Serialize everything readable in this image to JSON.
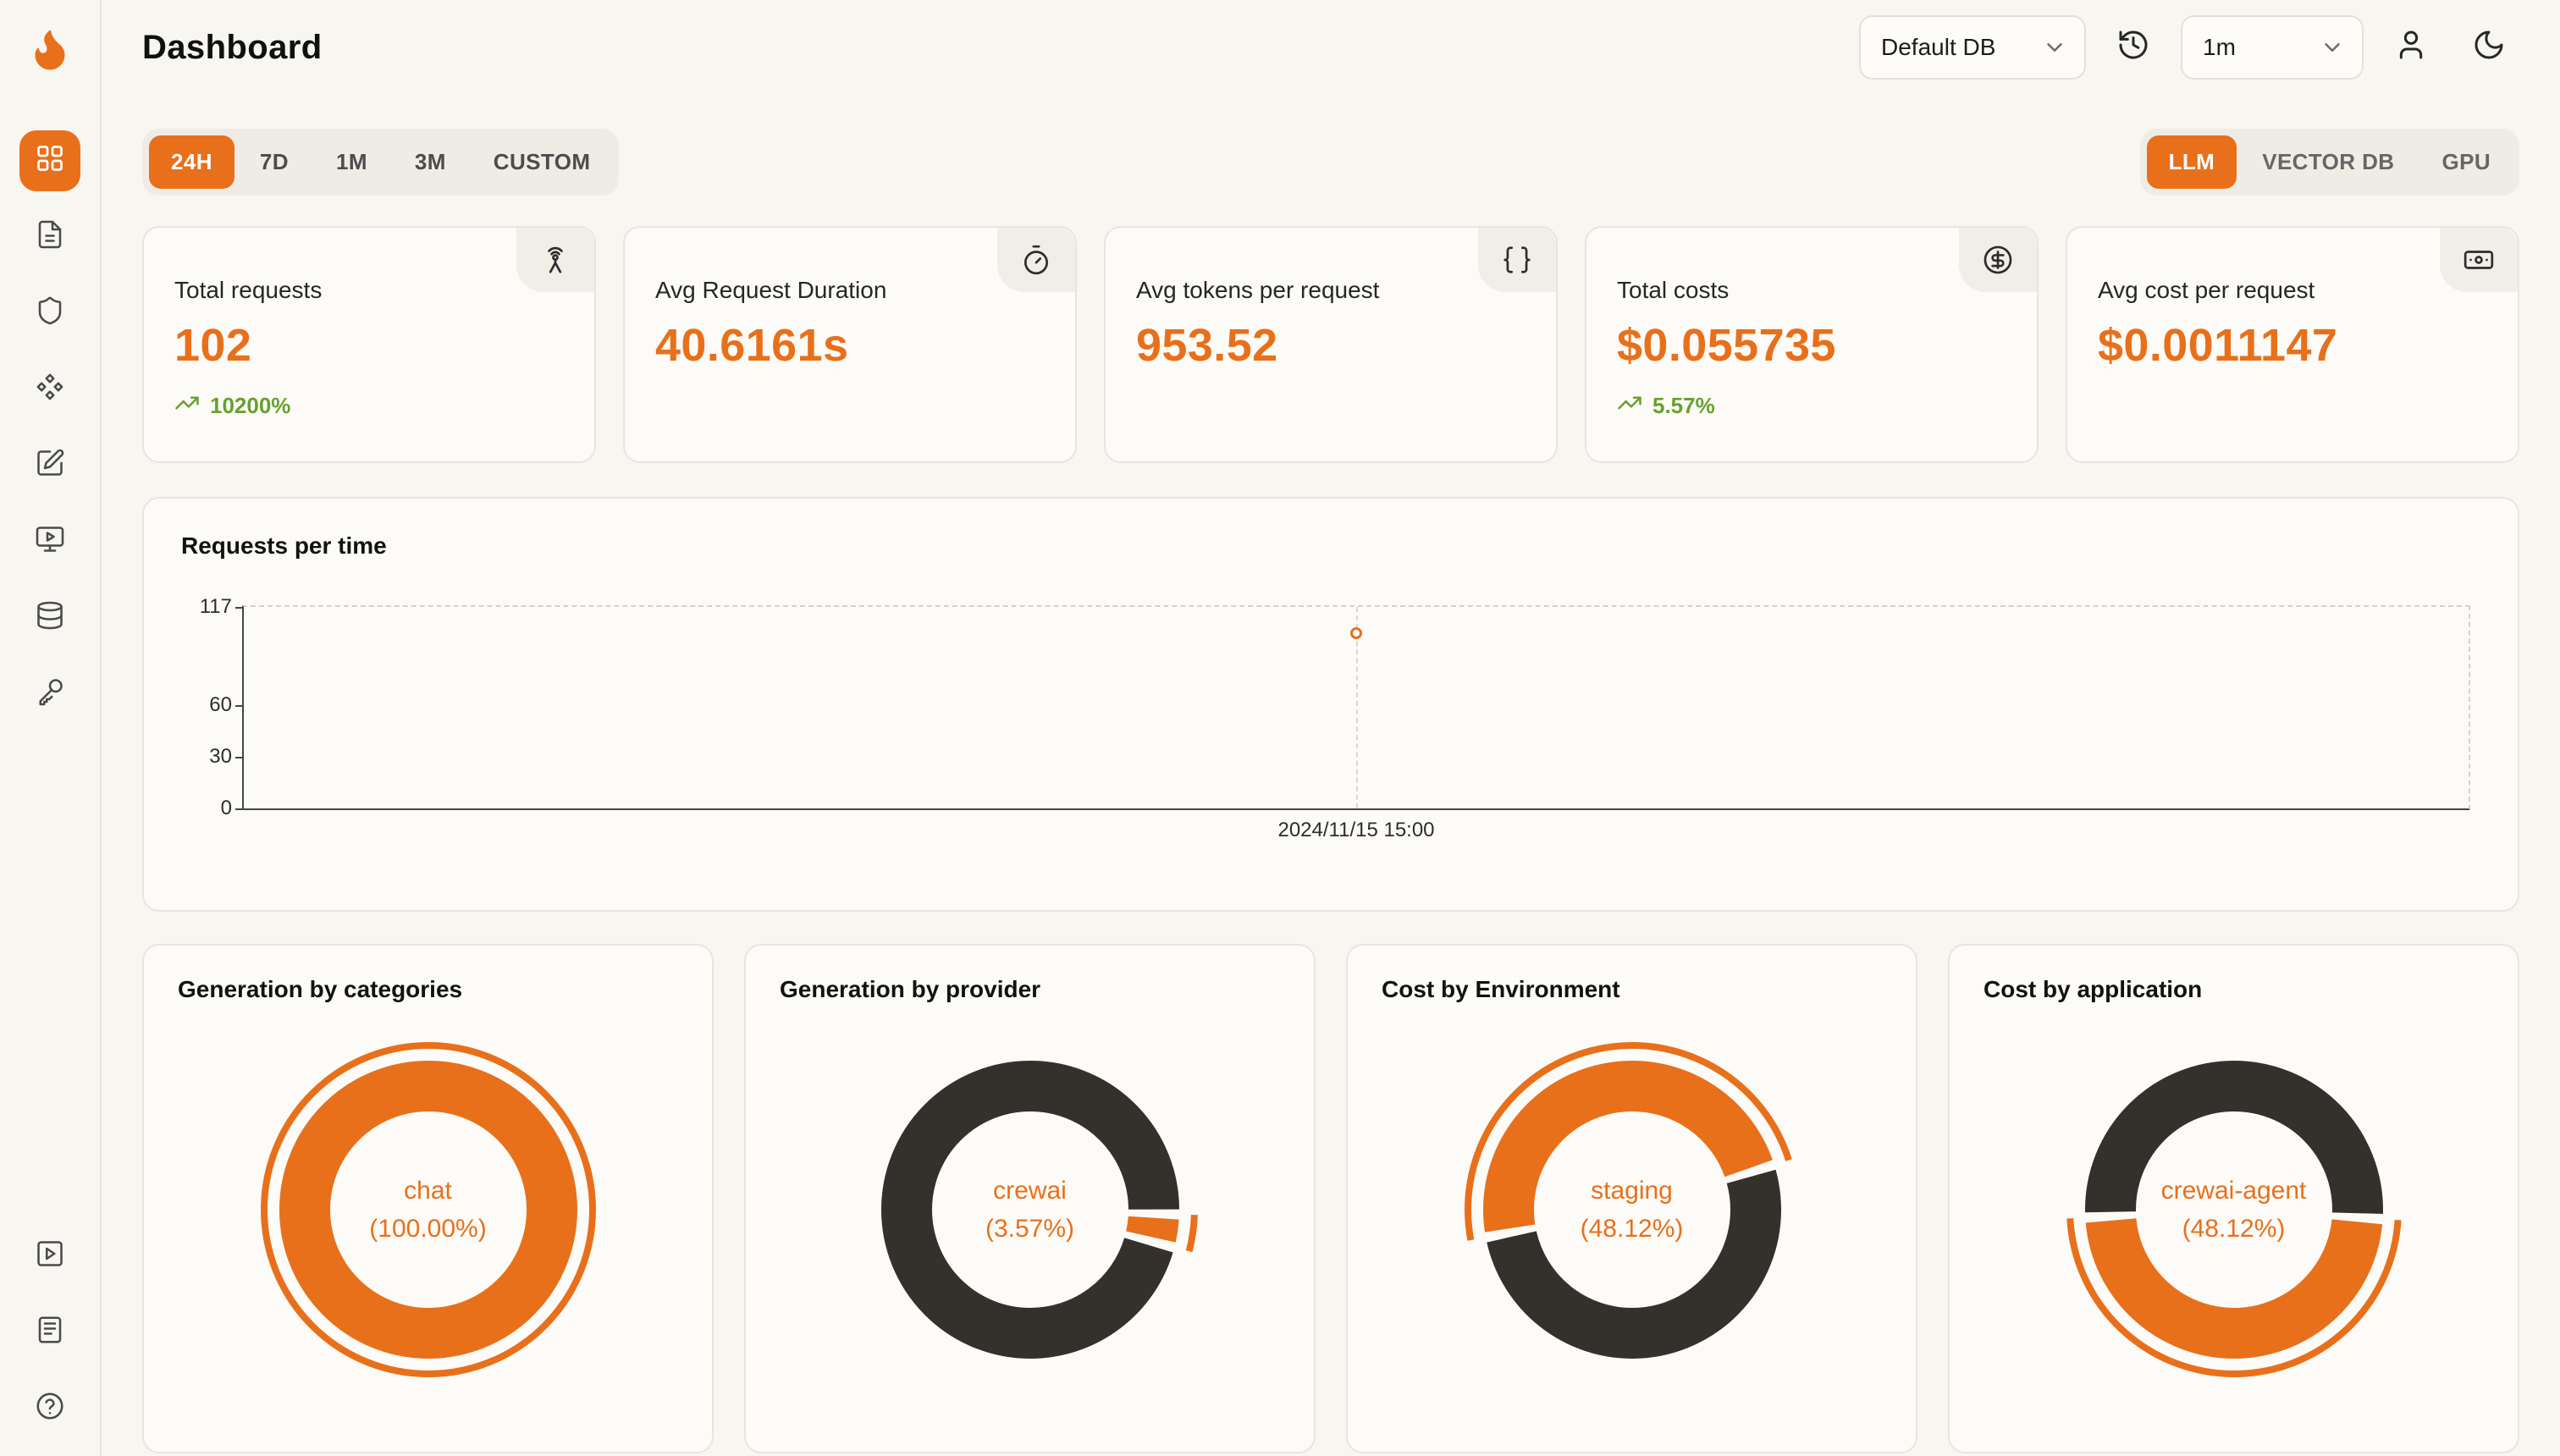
{
  "app": {
    "title": "Dashboard"
  },
  "header": {
    "db_select": {
      "value": "Default DB",
      "icon": "chevron-down-icon"
    },
    "refresh": {
      "icon": "history-icon"
    },
    "interval_select": {
      "value": "1m",
      "icon": "chevron-down-icon"
    },
    "profile": {
      "icon": "user-icon"
    },
    "theme": {
      "icon": "moon-icon"
    }
  },
  "sidebar": {
    "items": [
      {
        "icon": "dashboard-grid-icon",
        "active": true
      },
      {
        "icon": "requests-file-icon"
      },
      {
        "icon": "exceptions-shield-icon"
      },
      {
        "icon": "vector-diamonds-icon"
      },
      {
        "icon": "prompt-edit-icon"
      },
      {
        "icon": "playground-monitor-icon"
      },
      {
        "icon": "database-icon"
      },
      {
        "icon": "api-key-icon"
      }
    ],
    "footer_items": [
      {
        "icon": "video-play-icon"
      },
      {
        "icon": "docs-icon"
      },
      {
        "icon": "help-icon"
      }
    ]
  },
  "time_tabs": {
    "items": [
      "24H",
      "7D",
      "1M",
      "3M",
      "CUSTOM"
    ],
    "active": "24H"
  },
  "source_tabs": {
    "items": [
      "LLM",
      "VECTOR DB",
      "GPU"
    ],
    "active": "LLM"
  },
  "stats": [
    {
      "label": "Total requests",
      "value": "102",
      "delta": "10200%",
      "icon": "radio-tower-icon"
    },
    {
      "label": "Avg Request Duration",
      "value": "40.6161s",
      "delta": "",
      "icon": "timer-icon"
    },
    {
      "label": "Avg tokens per request",
      "value": "953.52",
      "delta": "",
      "icon": "braces-icon"
    },
    {
      "label": "Total costs",
      "value": "$0.055735",
      "delta": "5.57%",
      "icon": "circle-dollar-icon"
    },
    {
      "label": "Avg cost per request",
      "value": "$0.0011147",
      "delta": "",
      "icon": "banknote-icon"
    }
  ],
  "colors": {
    "accent": "#E8701B",
    "dark": "#34302B",
    "green": "#69A02E"
  },
  "chart_data": [
    {
      "type": "line",
      "title": "Requests per time",
      "x_labels": [
        "2024/11/15 15:00"
      ],
      "points": [
        {
          "x": "2024/11/15 15:00",
          "y": 102
        }
      ],
      "yticks": [
        117,
        60,
        30,
        0
      ],
      "ylim": [
        0,
        117
      ],
      "grid": "dashed-top-right"
    },
    {
      "type": "pie",
      "title": "Generation by categories",
      "center": {
        "label": "chat",
        "pct": "(100.00%)"
      },
      "segments": [
        {
          "label": "chat",
          "value": 100,
          "color": "accent",
          "start": 0
        }
      ],
      "highlight": {
        "start": 0,
        "span": 100
      }
    },
    {
      "type": "pie",
      "title": "Generation by provider",
      "center": {
        "label": "crewai",
        "pct": "(3.57%)"
      },
      "segments": [
        {
          "label": "crewai",
          "value": 3.57,
          "color": "accent",
          "start": 25.5
        },
        {
          "value": 96.43,
          "color": "dark",
          "start": 29.07
        }
      ],
      "highlight": {
        "start": 25.5,
        "span": 3.57
      }
    },
    {
      "type": "pie",
      "title": "Cost by Environment",
      "center": {
        "label": "staging",
        "pct": "(48.12%)"
      },
      "segments": [
        {
          "label": "staging",
          "value": 48.12,
          "color": "accent",
          "start": 72
        },
        {
          "value": 51.88,
          "color": "dark",
          "start": 20.12
        }
      ],
      "highlight": {
        "start": 72,
        "span": 48.12
      }
    },
    {
      "type": "pie",
      "title": "Cost by application",
      "center": {
        "label": "crewai-agent",
        "pct": "(48.12%)"
      },
      "segments": [
        {
          "label": "crewai-agent",
          "value": 48.12,
          "color": "accent",
          "start": 26
        },
        {
          "value": 51.88,
          "color": "dark",
          "start": 74.12
        }
      ],
      "highlight": {
        "start": 26,
        "span": 48.12
      }
    }
  ]
}
